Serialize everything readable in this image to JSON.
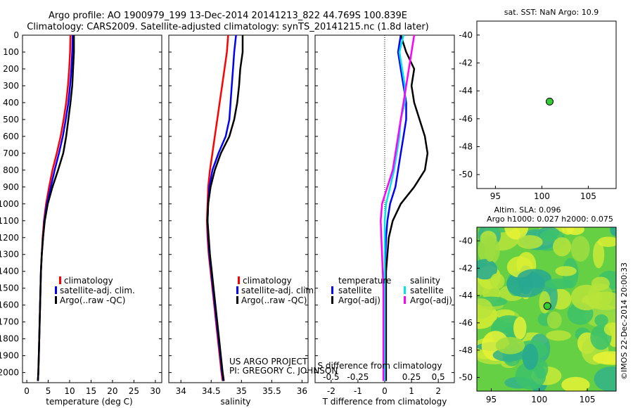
{
  "header": {
    "line1": "Argo profile: AO 1900979_199 13-Dec-2014 20141213_822 44.769S 100.839E",
    "line2": "Climatology: CARS2009. Satellite-adjusted climatology: synTS_20141215.nc (1.8d later)"
  },
  "credits": {
    "line1": "US ARGO PROJECT",
    "line2": "PI: GREGORY C. JOHNSON",
    "imos": "©IMOS 22-Dec-2014 20:00:33"
  },
  "colors": {
    "climatology": "#ff0000",
    "satellite": "#0000ff",
    "argo": "#000000",
    "sat_salinity": "#00e5e5",
    "argo_salinity": "#ff00ff",
    "float_marker": "#33cc33"
  },
  "depth_ticks": [
    "0",
    "100",
    "200",
    "300",
    "400",
    "500",
    "600",
    "700",
    "800",
    "900",
    "1000",
    "1100",
    "1200",
    "1300",
    "1400",
    "1500",
    "1600",
    "1700",
    "1800",
    "1900",
    "2000"
  ],
  "chart_data": [
    {
      "id": "temperature",
      "type": "line",
      "xlabel": "temperature (deg C)",
      "xlim": [
        -1,
        31.5
      ],
      "ylim": [
        0,
        2060
      ],
      "y_reversed": true,
      "xticks": [
        "0",
        "5",
        "10",
        "15",
        "20",
        "25",
        "30"
      ],
      "xtick_values": [
        0,
        5,
        10,
        15,
        20,
        25,
        30
      ],
      "legend": [
        "climatology",
        "satellite-adj. clim.",
        "Argo(..raw -QC)"
      ],
      "legend_position": "lower-center",
      "series": [
        {
          "key": "clim",
          "color": "#ff0000",
          "points": [
            [
              10.2,
              0
            ],
            [
              10.1,
              100
            ],
            [
              9.9,
              200
            ],
            [
              9.6,
              300
            ],
            [
              9.2,
              400
            ],
            [
              8.6,
              500
            ],
            [
              7.9,
              600
            ],
            [
              7.0,
              700
            ],
            [
              6.0,
              800
            ],
            [
              5.2,
              900
            ],
            [
              4.5,
              1000
            ],
            [
              4.0,
              1100
            ],
            [
              3.7,
              1200
            ],
            [
              3.5,
              1300
            ],
            [
              3.3,
              1400
            ],
            [
              3.2,
              1500
            ],
            [
              3.1,
              1600
            ],
            [
              3.0,
              1700
            ],
            [
              2.9,
              1800
            ],
            [
              2.8,
              1900
            ],
            [
              2.7,
              2000
            ],
            [
              2.6,
              2050
            ]
          ]
        },
        {
          "key": "sat",
          "color": "#0000ff",
          "points": [
            [
              10.7,
              0
            ],
            [
              10.6,
              100
            ],
            [
              10.4,
              200
            ],
            [
              10.1,
              300
            ],
            [
              9.7,
              400
            ],
            [
              9.1,
              500
            ],
            [
              8.4,
              600
            ],
            [
              7.5,
              700
            ],
            [
              6.5,
              800
            ],
            [
              5.6,
              900
            ],
            [
              4.7,
              1000
            ],
            [
              4.1,
              1100
            ],
            [
              3.8,
              1200
            ],
            [
              3.5,
              1300
            ],
            [
              3.3,
              1400
            ],
            [
              3.2,
              1500
            ],
            [
              3.1,
              1600
            ],
            [
              3.0,
              1700
            ],
            [
              2.9,
              1800
            ],
            [
              2.8,
              1900
            ],
            [
              2.7,
              2000
            ],
            [
              2.6,
              2050
            ]
          ]
        },
        {
          "key": "argo",
          "color": "#000000",
          "points": [
            [
              11.0,
              0
            ],
            [
              11.0,
              100
            ],
            [
              10.8,
              200
            ],
            [
              10.6,
              300
            ],
            [
              10.2,
              400
            ],
            [
              9.7,
              500
            ],
            [
              9.2,
              600
            ],
            [
              8.5,
              700
            ],
            [
              7.3,
              800
            ],
            [
              6.0,
              900
            ],
            [
              4.9,
              1000
            ],
            [
              4.2,
              1100
            ],
            [
              3.8,
              1200
            ],
            [
              3.5,
              1300
            ],
            [
              3.3,
              1400
            ],
            [
              3.2,
              1500
            ],
            [
              3.1,
              1600
            ],
            [
              3.0,
              1700
            ],
            [
              2.9,
              1800
            ],
            [
              2.8,
              1900
            ],
            [
              2.7,
              2000
            ],
            [
              2.6,
              2050
            ]
          ]
        }
      ]
    },
    {
      "id": "salinity",
      "type": "line",
      "xlabel": "salinity",
      "xlim": [
        33.8,
        36.1
      ],
      "ylim": [
        0,
        2060
      ],
      "y_reversed": true,
      "xticks": [
        "34",
        "34.5",
        "35",
        "35.5",
        "36"
      ],
      "xtick_values": [
        34,
        34.5,
        35,
        35.5,
        36
      ],
      "legend": [
        "climatology",
        "satellite-adj. clim.",
        "Argo(..raw -QC)"
      ],
      "legend_position": "lower-center",
      "series": [
        {
          "key": "clim",
          "color": "#ff0000",
          "points": [
            [
              34.78,
              0
            ],
            [
              34.76,
              100
            ],
            [
              34.72,
              200
            ],
            [
              34.68,
              300
            ],
            [
              34.64,
              400
            ],
            [
              34.6,
              500
            ],
            [
              34.56,
              600
            ],
            [
              34.52,
              700
            ],
            [
              34.48,
              800
            ],
            [
              34.45,
              900
            ],
            [
              34.44,
              1000
            ],
            [
              34.43,
              1100
            ],
            [
              34.44,
              1200
            ],
            [
              34.46,
              1300
            ],
            [
              34.49,
              1400
            ],
            [
              34.52,
              1500
            ],
            [
              34.55,
              1600
            ],
            [
              34.58,
              1700
            ],
            [
              34.61,
              1800
            ],
            [
              34.64,
              1900
            ],
            [
              34.67,
              2000
            ],
            [
              34.69,
              2050
            ]
          ]
        },
        {
          "key": "sat",
          "color": "#0000ff",
          "points": [
            [
              34.91,
              0
            ],
            [
              34.88,
              100
            ],
            [
              34.86,
              200
            ],
            [
              34.84,
              300
            ],
            [
              34.82,
              400
            ],
            [
              34.8,
              500
            ],
            [
              34.74,
              600
            ],
            [
              34.62,
              700
            ],
            [
              34.52,
              800
            ],
            [
              34.47,
              900
            ],
            [
              34.45,
              1000
            ],
            [
              34.44,
              1100
            ],
            [
              34.45,
              1200
            ],
            [
              34.47,
              1300
            ],
            [
              34.5,
              1400
            ],
            [
              34.53,
              1500
            ],
            [
              34.56,
              1600
            ],
            [
              34.59,
              1700
            ],
            [
              34.62,
              1800
            ],
            [
              34.65,
              1900
            ],
            [
              34.68,
              2000
            ],
            [
              34.7,
              2050
            ]
          ]
        },
        {
          "key": "argo",
          "color": "#000000",
          "points": [
            [
              35.02,
              0
            ],
            [
              35.02,
              100
            ],
            [
              34.98,
              200
            ],
            [
              34.96,
              300
            ],
            [
              34.93,
              400
            ],
            [
              34.88,
              500
            ],
            [
              34.8,
              600
            ],
            [
              34.66,
              700
            ],
            [
              34.56,
              800
            ],
            [
              34.49,
              900
            ],
            [
              34.45,
              1000
            ],
            [
              34.44,
              1100
            ],
            [
              34.46,
              1200
            ],
            [
              34.48,
              1300
            ],
            [
              34.51,
              1400
            ],
            [
              34.54,
              1500
            ],
            [
              34.57,
              1600
            ],
            [
              34.6,
              1700
            ],
            [
              34.63,
              1800
            ],
            [
              34.66,
              1900
            ],
            [
              34.69,
              2000
            ],
            [
              34.71,
              2050
            ]
          ]
        }
      ]
    },
    {
      "id": "difference",
      "type": "line",
      "xlabel": "T difference from climatology",
      "x2label": "S difference from climatology",
      "xlim": [
        -2.6,
        2.6
      ],
      "ylim": [
        0,
        2060
      ],
      "y_reversed": true,
      "xticks": [
        "-2",
        "-1",
        "0",
        "1",
        "2"
      ],
      "xtick_values": [
        -2,
        -1,
        0,
        1,
        2
      ],
      "x2ticks": [
        "-0.5",
        "-0.25",
        "0",
        "0.25",
        "0.5"
      ],
      "x2tick_values": [
        -2,
        -1,
        0,
        1,
        2
      ],
      "legend_temperature_title": "temperature",
      "legend_salinity_title": "salinity",
      "legend_temperature": [
        "satellite",
        "Argo(-adj)"
      ],
      "legend_salinity": [
        "satellite",
        "Argo(-adj)"
      ],
      "series": [
        {
          "key": "T_sat",
          "color": "#0000ff",
          "points": [
            [
              0.6,
              0
            ],
            [
              0.5,
              100
            ],
            [
              0.6,
              200
            ],
            [
              0.7,
              300
            ],
            [
              0.8,
              400
            ],
            [
              0.8,
              500
            ],
            [
              0.7,
              600
            ],
            [
              0.6,
              700
            ],
            [
              0.5,
              800
            ],
            [
              0.4,
              900
            ],
            [
              0.2,
              1000
            ],
            [
              0.1,
              1100
            ],
            [
              0.05,
              1200
            ],
            [
              0.0,
              1400
            ],
            [
              0.0,
              2050
            ]
          ]
        },
        {
          "key": "T_argo",
          "color": "#000000",
          "points": [
            [
              0.6,
              0
            ],
            [
              0.8,
              100
            ],
            [
              1.1,
              200
            ],
            [
              1.0,
              300
            ],
            [
              1.1,
              400
            ],
            [
              1.3,
              500
            ],
            [
              1.5,
              600
            ],
            [
              1.6,
              700
            ],
            [
              1.5,
              800
            ],
            [
              1.1,
              900
            ],
            [
              0.6,
              1000
            ],
            [
              0.3,
              1100
            ],
            [
              0.15,
              1200
            ],
            [
              0.05,
              1400
            ],
            [
              0.05,
              2050
            ]
          ]
        },
        {
          "key": "S_sat",
          "color": "#00e5e5",
          "points": [
            [
              0.7,
              0
            ],
            [
              0.55,
              100
            ],
            [
              0.65,
              200
            ],
            [
              0.75,
              300
            ],
            [
              0.75,
              400
            ],
            [
              0.6,
              500
            ],
            [
              0.55,
              600
            ],
            [
              0.45,
              700
            ],
            [
              0.35,
              800
            ],
            [
              0.2,
              900
            ],
            [
              0.05,
              1000
            ],
            [
              0.0,
              1100
            ],
            [
              0.0,
              2050
            ]
          ]
        },
        {
          "key": "S_argo",
          "color": "#ff00ff",
          "points": [
            [
              1.1,
              0
            ],
            [
              1.0,
              100
            ],
            [
              0.9,
              200
            ],
            [
              0.8,
              300
            ],
            [
              0.7,
              400
            ],
            [
              0.6,
              500
            ],
            [
              0.5,
              600
            ],
            [
              0.4,
              700
            ],
            [
              0.3,
              800
            ],
            [
              0.1,
              900
            ],
            [
              -0.1,
              1000
            ],
            [
              -0.15,
              1100
            ],
            [
              -0.1,
              1300
            ],
            [
              -0.05,
              1500
            ],
            [
              -0.05,
              2050
            ]
          ]
        }
      ]
    },
    {
      "id": "sst_map",
      "type": "scatter",
      "title": "sat. SST: NaN Argo: 10.9",
      "xlim": [
        93,
        108
      ],
      "ylim": [
        -51,
        -39
      ],
      "xticks": [
        "95",
        "100",
        "105"
      ],
      "xtick_values": [
        95,
        100,
        105
      ],
      "yticks": [
        "-40",
        "-42",
        "-44",
        "-46",
        "-48",
        "-50"
      ],
      "ytick_values": [
        -40,
        -42,
        -44,
        -46,
        -48,
        -50
      ],
      "points": [
        [
          100.839,
          -44.769
        ]
      ]
    },
    {
      "id": "sla_map",
      "type": "heatmap",
      "title_line1": "Altim. SLA: 0.096",
      "title_line2": "Argo h1000: 0.027 h2000: 0.075",
      "xlim": [
        93.5,
        108
      ],
      "ylim": [
        -51,
        -39
      ],
      "xticks": [
        "95",
        "100",
        "105"
      ],
      "xtick_values": [
        95,
        100,
        105
      ],
      "yticks": [
        "-40",
        "-42",
        "-44",
        "-46",
        "-48",
        "-50"
      ],
      "ytick_values": [
        -40,
        -42,
        -44,
        -46,
        -48,
        -50
      ],
      "points": [
        [
          100.839,
          -44.769
        ]
      ]
    }
  ]
}
